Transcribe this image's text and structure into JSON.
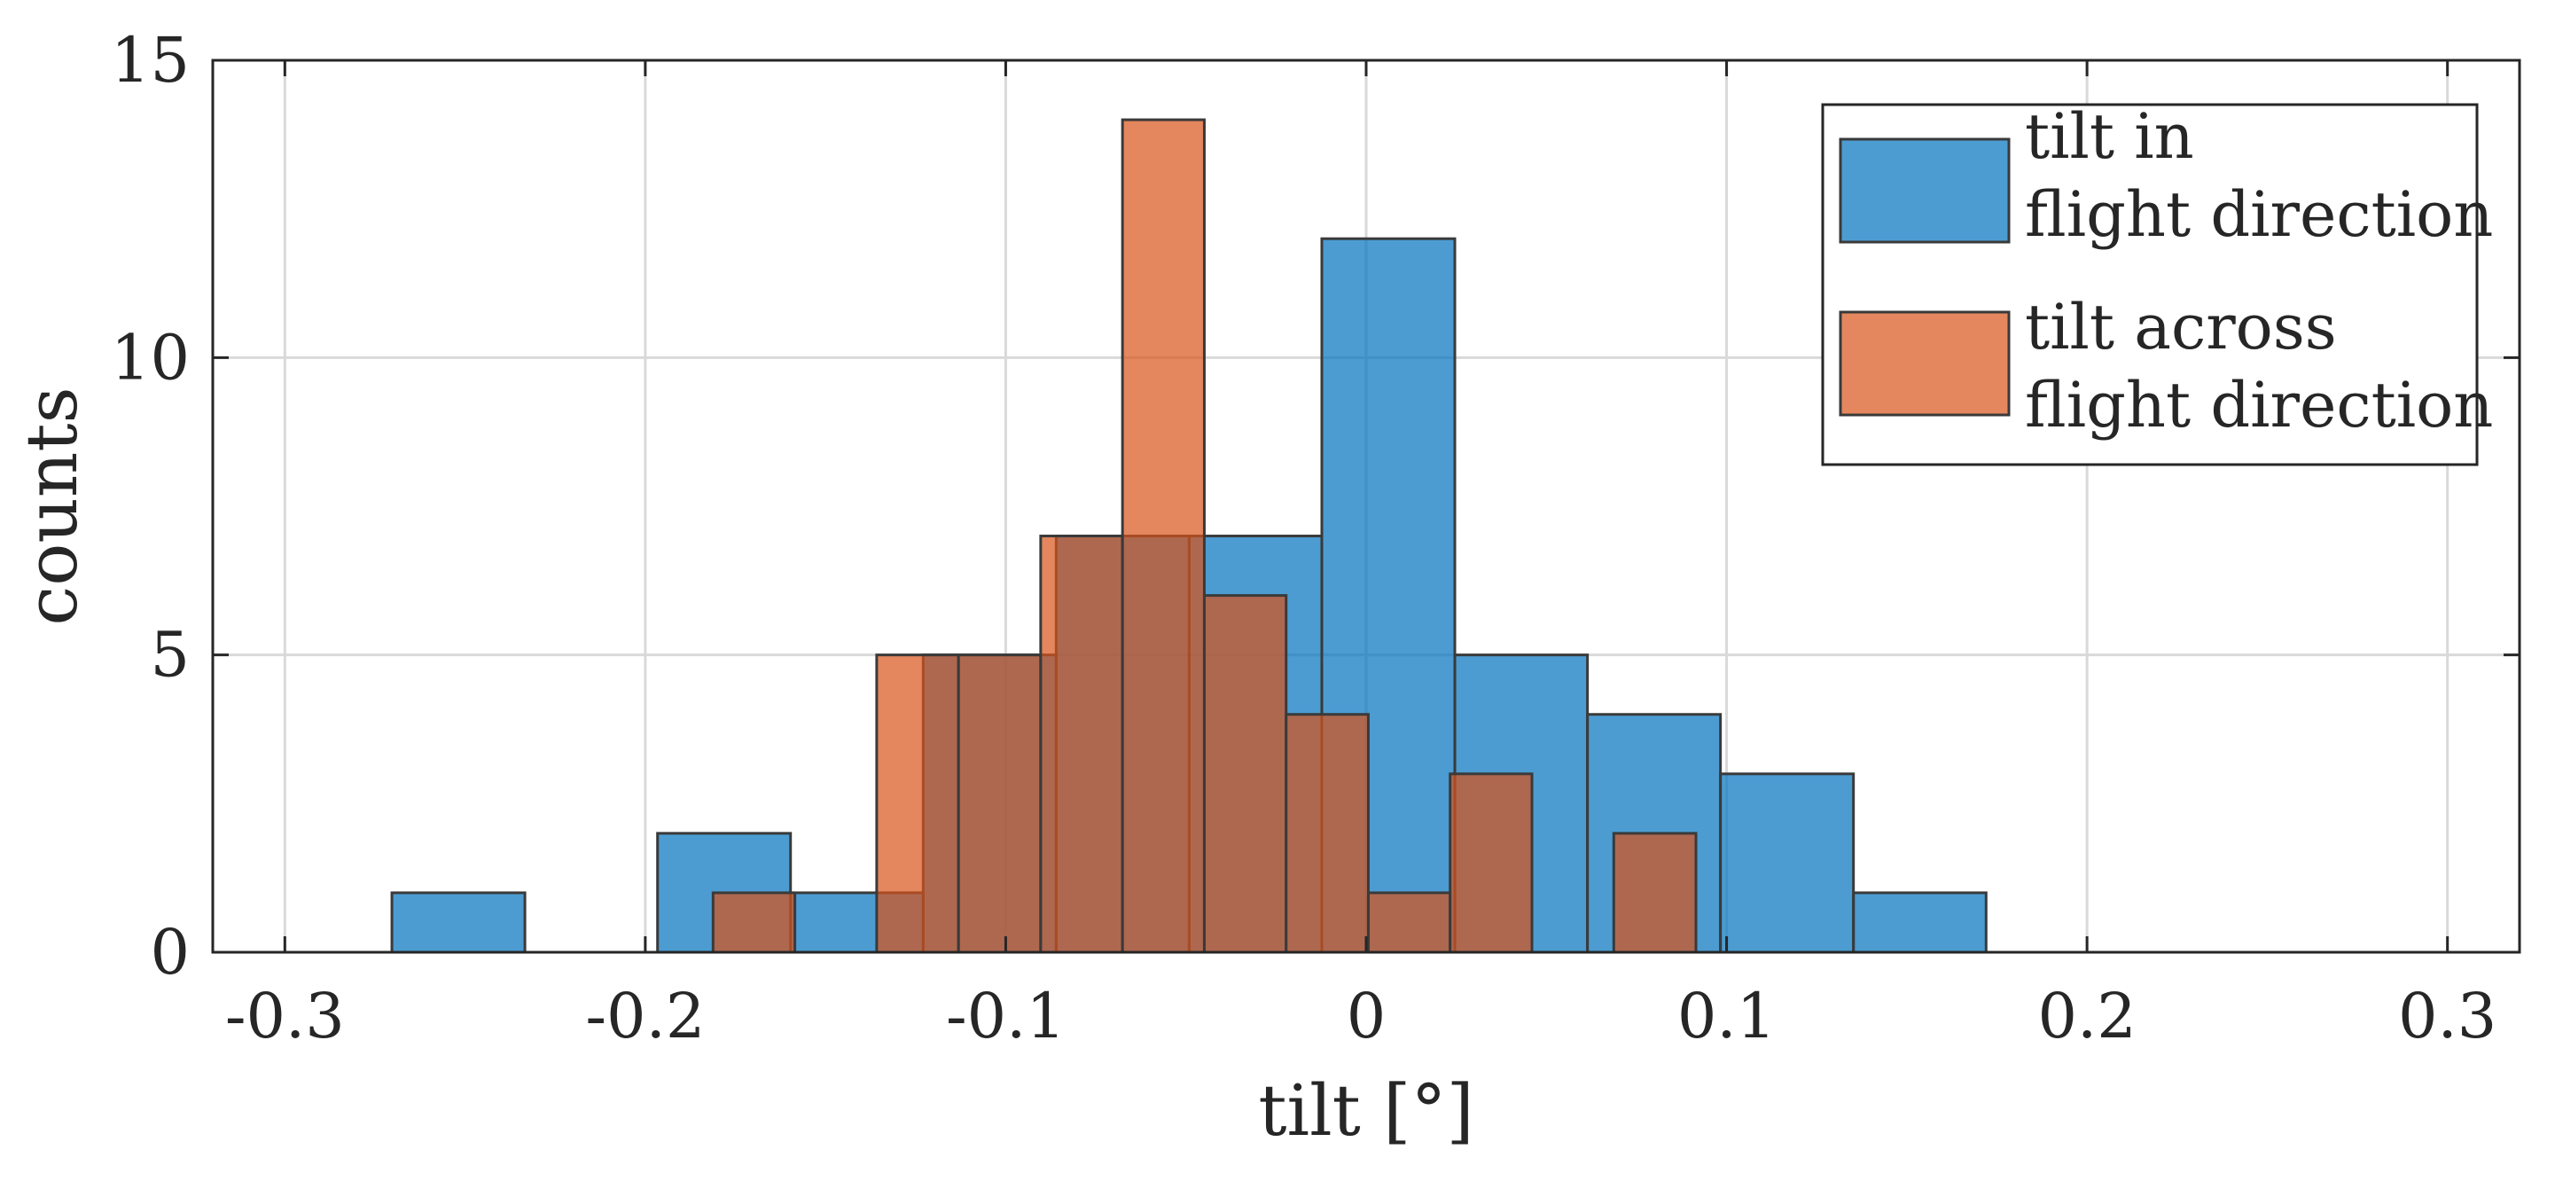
{
  "chart_data": {
    "type": "bar",
    "title": "",
    "xlabel": "tilt [°]",
    "ylabel": "counts",
    "xlim": [
      -0.32,
      0.32
    ],
    "ylim": [
      0,
      15
    ],
    "grid": true,
    "legend_position": "top-right",
    "xticks": [
      {
        "value": -0.3,
        "label": "-0.3"
      },
      {
        "value": -0.2,
        "label": "-0.2"
      },
      {
        "value": -0.1,
        "label": "-0.1"
      },
      {
        "value": 0,
        "label": "0"
      },
      {
        "value": 0.1,
        "label": "0.1"
      },
      {
        "value": 0.2,
        "label": "0.2"
      },
      {
        "value": 0.3,
        "label": "0.3"
      }
    ],
    "yticks": [
      {
        "value": 0,
        "label": "0"
      },
      {
        "value": 5,
        "label": "5"
      },
      {
        "value": 10,
        "label": "10"
      },
      {
        "value": 15,
        "label": "15"
      }
    ],
    "series": [
      {
        "name": "tilt in flight direction",
        "legend_lines": [
          "tilt in",
          "flight direction"
        ],
        "color": "#0072BD",
        "opacity": 0.7,
        "bin_edges": [
          -0.2703,
          -0.2334,
          -0.1966,
          -0.1597,
          -0.1229,
          -0.086,
          -0.0491,
          -0.0123,
          0.0246,
          0.0614,
          0.0983,
          0.1352,
          0.172
        ],
        "values": [
          1,
          0,
          2,
          1,
          5,
          7,
          7,
          12,
          5,
          4,
          3,
          1
        ]
      },
      {
        "name": "tilt across flight direction",
        "legend_lines": [
          "tilt across",
          "flight direction"
        ],
        "color": "#D95319",
        "opacity": 0.7,
        "bin_edges": [
          -0.1812,
          -0.1585,
          -0.1358,
          -0.1131,
          -0.0903,
          -0.0676,
          -0.0449,
          -0.0222,
          0.0006,
          0.0233,
          0.046,
          0.0687,
          0.0915
        ],
        "values": [
          1,
          0,
          5,
          5,
          7,
          14,
          6,
          4,
          1,
          3,
          0,
          2
        ]
      }
    ]
  }
}
